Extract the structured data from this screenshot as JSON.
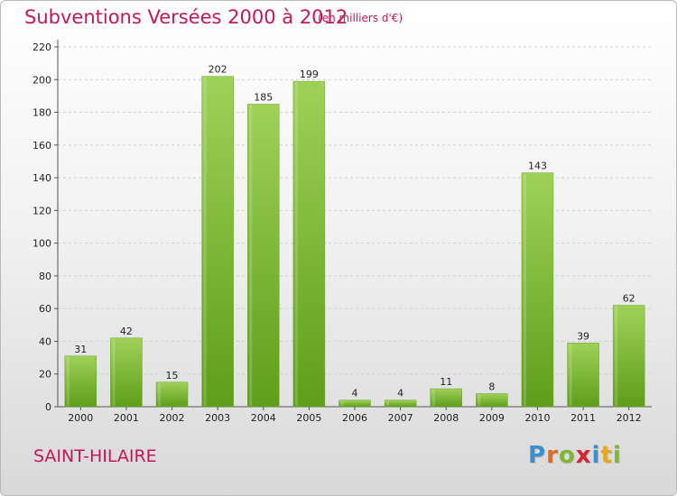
{
  "header": {
    "title": "Subventions Versées 2000 à 2012",
    "subtitle": "(en milliers d'€)"
  },
  "footer": {
    "place": "SAINT-HILAIRE",
    "logo_letters": [
      "P",
      "r",
      "o",
      "x",
      "i",
      "t",
      "i"
    ]
  },
  "colors": {
    "accent": "#c2185b",
    "bar_light": "#9fd158",
    "bar_dark": "#5e9e1a",
    "grid": "#cfcfcf",
    "logo": [
      "#3a8fd1",
      "#e06a1e",
      "#7fb933",
      "#d6262f",
      "#3a8fd1",
      "#e3a91a",
      "#7fb933"
    ]
  },
  "chart_data": {
    "type": "bar",
    "title": "Subventions Versées 2000 à 2012",
    "subtitle": "(en milliers d'€)",
    "categories": [
      "2000",
      "2001",
      "2002",
      "2003",
      "2004",
      "2005",
      "2006",
      "2007",
      "2008",
      "2009",
      "2010",
      "2011",
      "2012"
    ],
    "values": [
      31,
      42,
      15,
      202,
      185,
      199,
      4,
      4,
      11,
      8,
      143,
      39,
      62
    ],
    "xlabel": "",
    "ylabel": "",
    "ylim": [
      0,
      220
    ],
    "yticks": [
      0,
      20,
      40,
      60,
      80,
      100,
      120,
      140,
      160,
      180,
      200,
      220
    ],
    "grid": true,
    "data_labels": true
  }
}
